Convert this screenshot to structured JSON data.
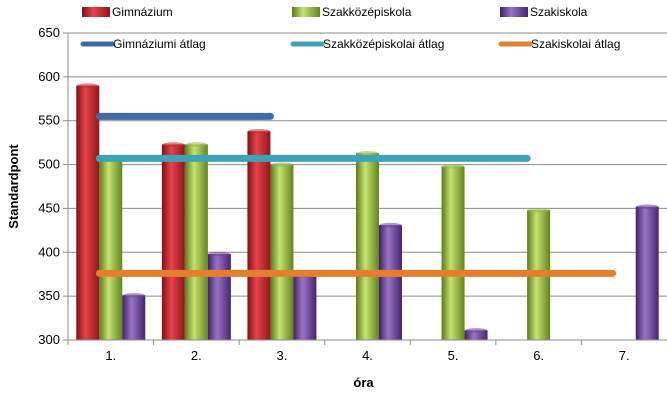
{
  "chart_data": {
    "type": "bar",
    "xlabel": "óra",
    "ylabel": "Standardpont",
    "ylim": [
      300,
      650
    ],
    "yticks": [
      300,
      350,
      400,
      450,
      500,
      550,
      600,
      650
    ],
    "categories": [
      "1.",
      "2.",
      "3.",
      "4.",
      "5.",
      "6.",
      "7."
    ],
    "grid": "horizontal",
    "legend_position": "top",
    "series": [
      {
        "name": "Gimnázium",
        "color": "#c0262c",
        "values": [
          590,
          523,
          538,
          null,
          null,
          null,
          null
        ]
      },
      {
        "name": "Szakközépiskola",
        "color": "#8fb43a",
        "values": [
          507,
          523,
          500,
          513,
          498,
          448,
          null
        ]
      },
      {
        "name": "Szakiskola",
        "color": "#6a3f97",
        "values": [
          351,
          398,
          374,
          431,
          311,
          null,
          452
        ]
      }
    ],
    "reference_lines": [
      {
        "name": "Gimnáziumi átlag",
        "color": "#3d6aa8",
        "value": 555,
        "from_category": 0,
        "to_category": 2
      },
      {
        "name": "Szakközépiskolai átlag",
        "color": "#3fa3b8",
        "value": 507,
        "from_category": 0,
        "to_category": 5
      },
      {
        "name": "Szakiskolai átlag",
        "color": "#e57f2e",
        "value": 376,
        "from_category": 0,
        "to_category": 6
      }
    ]
  }
}
